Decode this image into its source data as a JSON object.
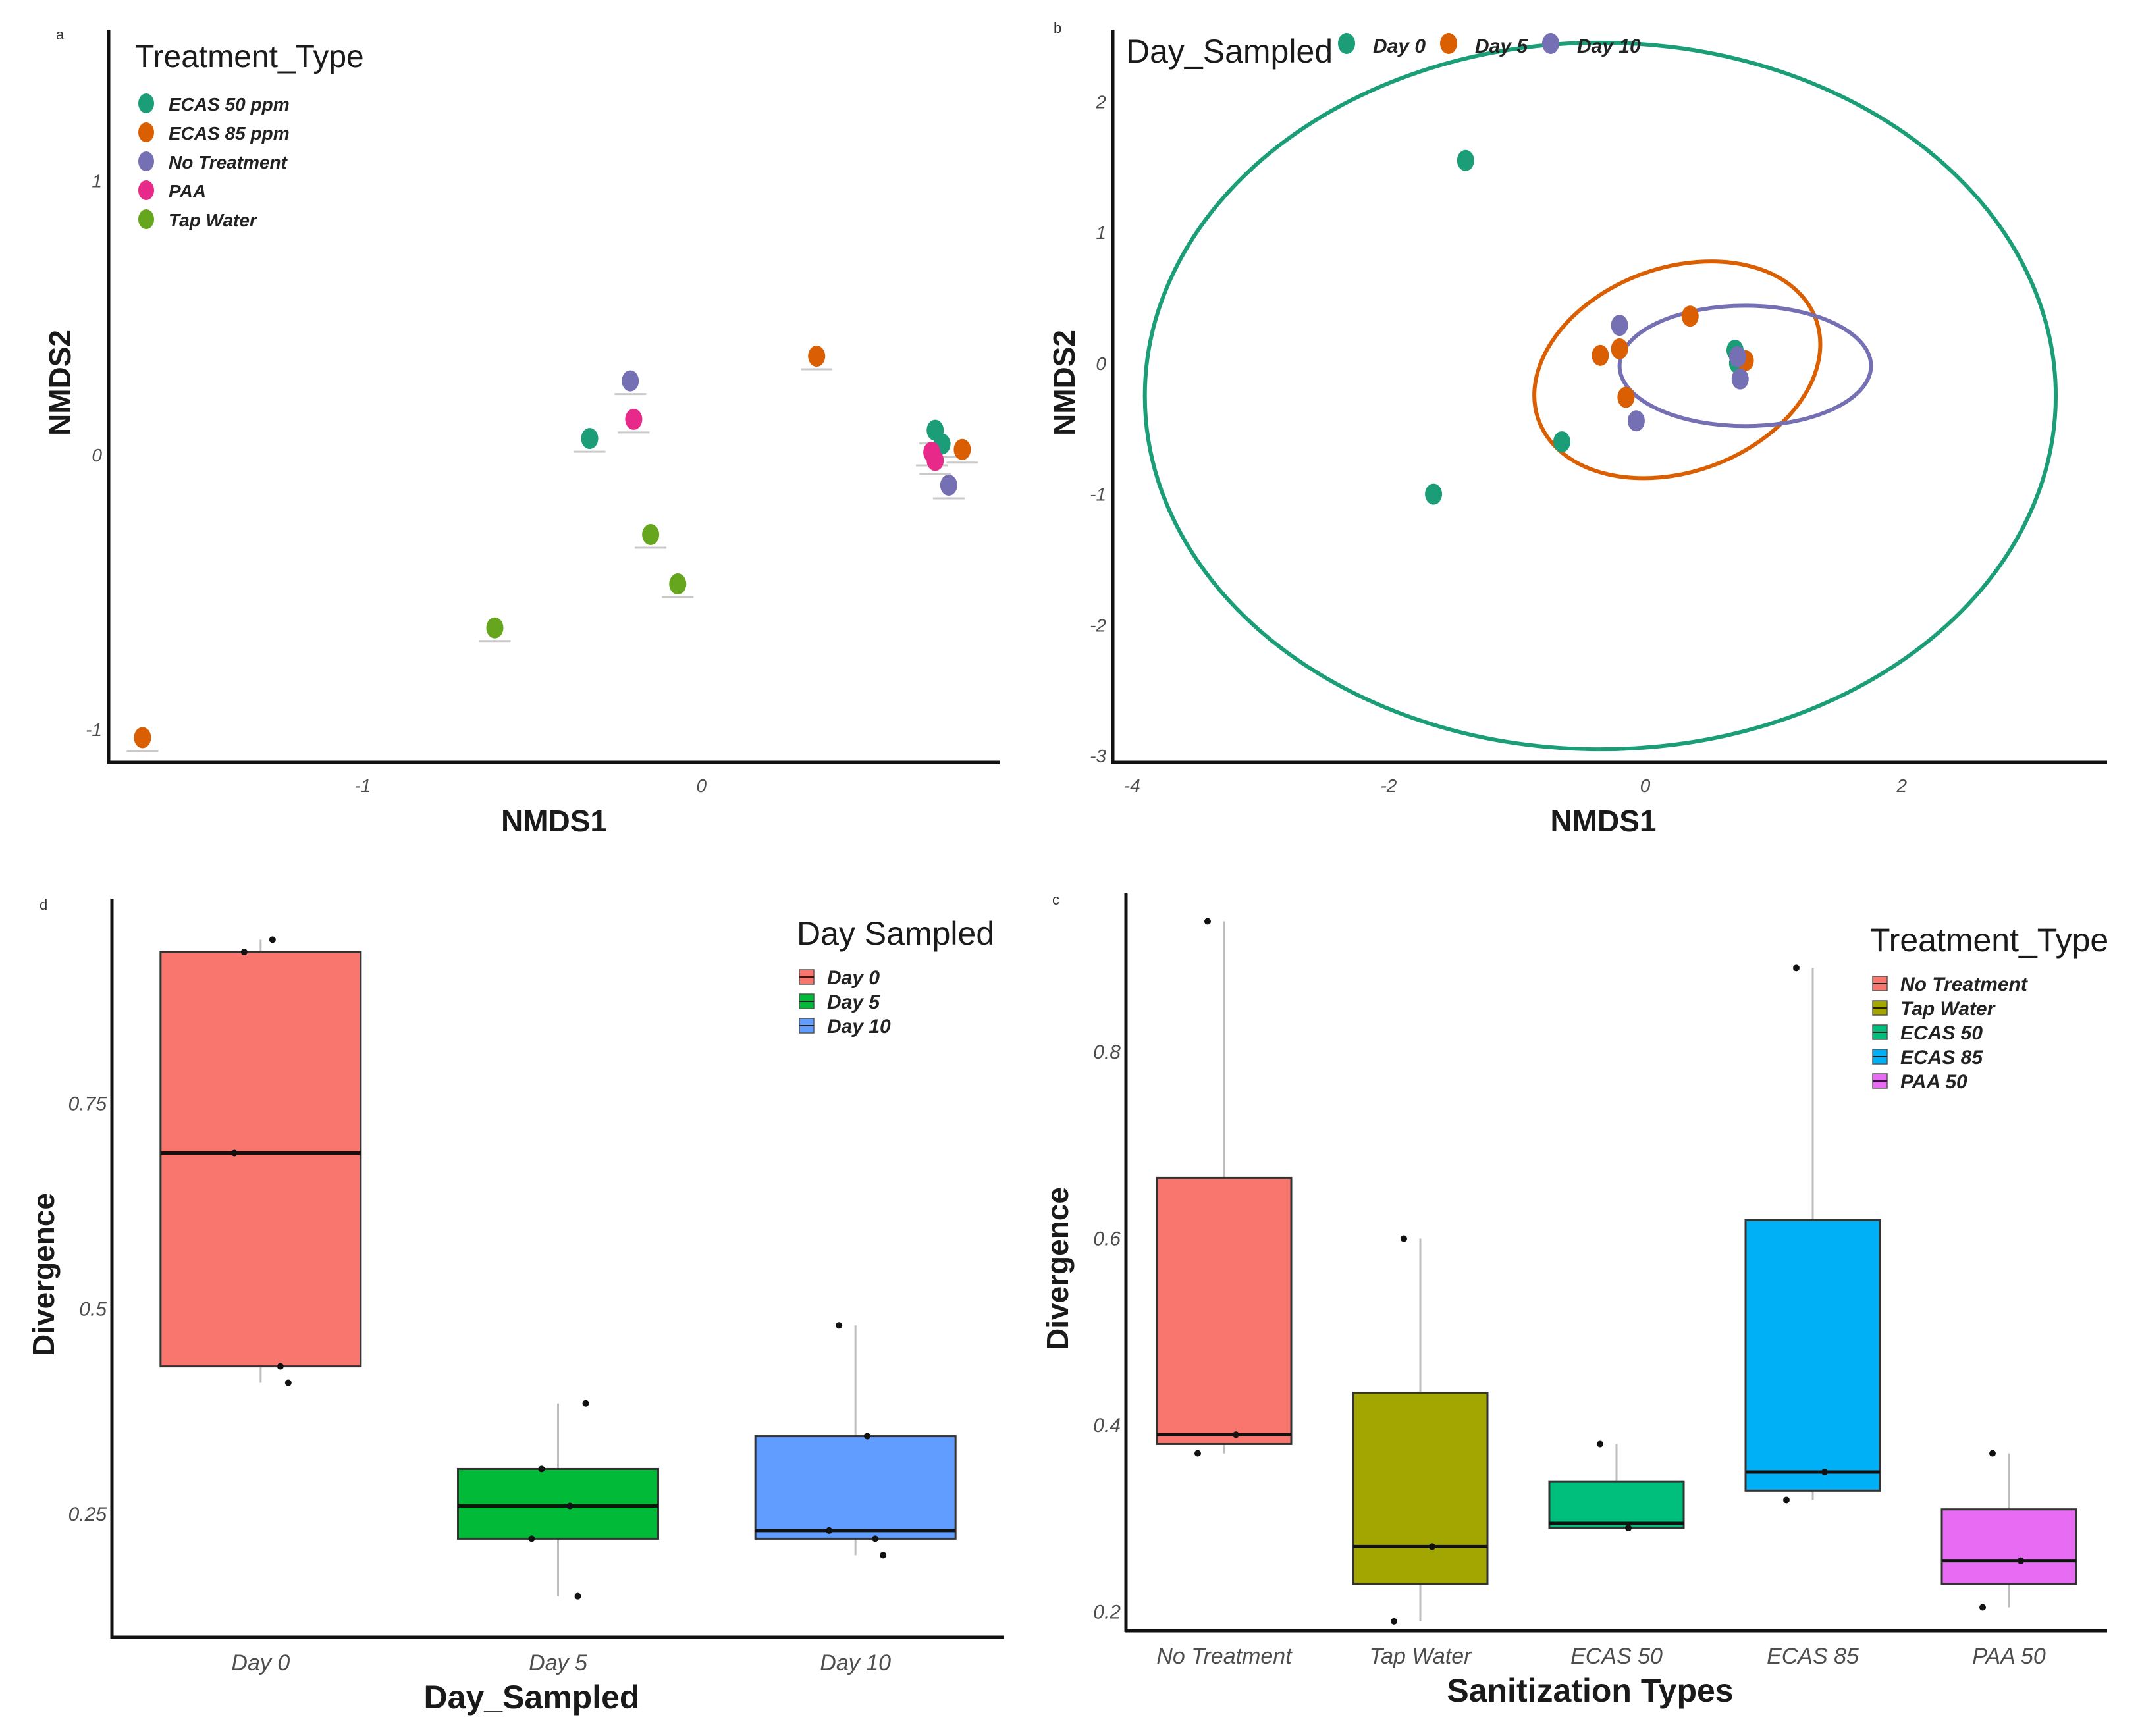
{
  "chart_data": [
    {
      "panel": "a",
      "type": "scatter",
      "xlabel": "NMDS1",
      "ylabel": "NMDS2",
      "xlim": [
        -1.75,
        0.88
      ],
      "ylim": [
        -1.12,
        1.55
      ],
      "xticks": [
        -1,
        0
      ],
      "yticks": [
        -1,
        0,
        1
      ],
      "legend": {
        "title": "Treatment_Type",
        "position": "top-left",
        "entries": [
          {
            "label": "ECAS 50 ppm",
            "color": "#1b9e77"
          },
          {
            "label": "ECAS 85 ppm",
            "color": "#d95f02"
          },
          {
            "label": "No Treatment",
            "color": "#7570b3"
          },
          {
            "label": "PAA",
            "color": "#e7298a"
          },
          {
            "label": "Tap Water",
            "color": "#66a61e"
          }
        ]
      },
      "series": [
        {
          "name": "ECAS 50 ppm",
          "color": "#1b9e77",
          "points": [
            [
              -0.33,
              0.06
            ],
            [
              0.69,
              0.09
            ],
            [
              0.71,
              0.04
            ]
          ]
        },
        {
          "name": "ECAS 85 ppm",
          "color": "#d95f02",
          "points": [
            [
              -1.65,
              -1.03
            ],
            [
              0.34,
              0.36
            ],
            [
              0.77,
              0.02
            ]
          ]
        },
        {
          "name": "No Treatment",
          "color": "#7570b3",
          "points": [
            [
              -0.21,
              0.27
            ],
            [
              0.73,
              -0.11
            ]
          ]
        },
        {
          "name": "PAA",
          "color": "#e7298a",
          "points": [
            [
              -0.2,
              0.13
            ],
            [
              0.68,
              0.01
            ],
            [
              0.69,
              -0.02
            ]
          ]
        },
        {
          "name": "Tap Water",
          "color": "#66a61e",
          "points": [
            [
              -0.15,
              -0.29
            ],
            [
              -0.07,
              -0.47
            ],
            [
              -0.61,
              -0.63
            ]
          ]
        }
      ]
    },
    {
      "panel": "b",
      "type": "scatter",
      "xlabel": "NMDS1",
      "ylabel": "NMDS2",
      "xlim": [
        -4.15,
        3.6
      ],
      "ylim": [
        -3.05,
        2.55
      ],
      "xticks": [
        -4,
        -2,
        0,
        2
      ],
      "yticks": [
        -3,
        -2,
        -1,
        0,
        1,
        2
      ],
      "legend": {
        "title": "Day_Sampled",
        "position": "top",
        "entries": [
          {
            "label": "Day 0",
            "color": "#1b9e77"
          },
          {
            "label": "Day 5",
            "color": "#d95f02"
          },
          {
            "label": "Day 10",
            "color": "#7570b3"
          }
        ]
      },
      "series": [
        {
          "name": "Day 0",
          "color": "#1b9e77",
          "points": [
            [
              -1.4,
              1.55
            ],
            [
              -1.65,
              -1.0
            ],
            [
              -0.65,
              -0.6
            ],
            [
              0.7,
              0.1
            ],
            [
              0.72,
              0.0
            ]
          ]
        },
        {
          "name": "Day 5",
          "color": "#d95f02",
          "points": [
            [
              -0.35,
              0.06
            ],
            [
              -0.2,
              0.11
            ],
            [
              0.35,
              0.36
            ],
            [
              -0.15,
              -0.26
            ],
            [
              0.78,
              0.02
            ]
          ]
        },
        {
          "name": "Day 10",
          "color": "#7570b3",
          "points": [
            [
              -0.2,
              0.29
            ],
            [
              -0.07,
              -0.44
            ],
            [
              0.72,
              0.05
            ],
            [
              0.74,
              -0.12
            ]
          ]
        }
      ],
      "ellipses": [
        {
          "name": "Day 0",
          "color": "#1b9e77",
          "center": [
            -0.35,
            -0.25
          ],
          "radii": [
            3.55,
            2.7
          ],
          "angle": 0
        },
        {
          "name": "Day 5",
          "color": "#d95f02",
          "center": [
            0.25,
            -0.05
          ],
          "radii": [
            1.15,
            0.78
          ],
          "angle": 20
        },
        {
          "name": "Day 10",
          "color": "#7570b3",
          "center": [
            0.78,
            -0.02
          ],
          "radii": [
            0.98,
            0.46
          ],
          "angle": 0
        }
      ]
    },
    {
      "panel": "d",
      "type": "box",
      "xlabel": "Day_Sampled",
      "ylabel": "Divergence",
      "ylim": [
        0.1,
        1.0
      ],
      "yticks": [
        0.25,
        0.5,
        0.75
      ],
      "categories": [
        "Day 0",
        "Day 5",
        "Day 10"
      ],
      "legend": {
        "title": "Day Sampled",
        "position": "top-right",
        "entries": [
          {
            "label": "Day 0",
            "color": "#f8766d"
          },
          {
            "label": "Day 5",
            "color": "#00ba38"
          },
          {
            "label": "Day 10",
            "color": "#619cff"
          }
        ]
      },
      "boxes": [
        {
          "category": "Day 0",
          "color": "#f8766d",
          "min": 0.41,
          "q1": 0.43,
          "median": 0.69,
          "q3": 0.935,
          "max": 0.95,
          "points": [
            0.935,
            0.95,
            0.69,
            0.43,
            0.41
          ]
        },
        {
          "category": "Day 5",
          "color": "#00ba38",
          "min": 0.15,
          "q1": 0.22,
          "median": 0.26,
          "q3": 0.305,
          "max": 0.385,
          "points": [
            0.305,
            0.26,
            0.22,
            0.15,
            0.385
          ]
        },
        {
          "category": "Day 10",
          "color": "#619cff",
          "min": 0.2,
          "q1": 0.22,
          "median": 0.23,
          "q3": 0.345,
          "max": 0.48,
          "points": [
            0.48,
            0.345,
            0.23,
            0.22,
            0.2
          ]
        }
      ]
    },
    {
      "panel": "c",
      "type": "box",
      "xlabel": "Sanitization Types",
      "ylabel": "Divergence",
      "ylim": [
        0.18,
        0.97
      ],
      "yticks": [
        0.2,
        0.4,
        0.6,
        0.8
      ],
      "categories": [
        "No Treatment",
        "Tap Water",
        "ECAS 50",
        "ECAS 85",
        "PAA 50"
      ],
      "legend": {
        "title": "Treatment_Type",
        "position": "top-right",
        "entries": [
          {
            "label": "No Treatment",
            "color": "#f8766d"
          },
          {
            "label": "Tap Water",
            "color": "#a3a500"
          },
          {
            "label": "ECAS 50",
            "color": "#00bf7d"
          },
          {
            "label": "ECAS 85",
            "color": "#00b0f6"
          },
          {
            "label": "PAA 50",
            "color": "#e76bf3"
          }
        ]
      },
      "boxes": [
        {
          "category": "No Treatment",
          "color": "#f8766d",
          "min": 0.37,
          "q1": 0.38,
          "median": 0.39,
          "q3": 0.665,
          "max": 0.94,
          "points": [
            0.94,
            0.39,
            0.37
          ]
        },
        {
          "category": "Tap Water",
          "color": "#a3a500",
          "min": 0.19,
          "q1": 0.23,
          "median": 0.27,
          "q3": 0.435,
          "max": 0.6,
          "points": [
            0.6,
            0.27,
            0.19
          ]
        },
        {
          "category": "ECAS 50",
          "color": "#00bf7d",
          "min": 0.29,
          "q1": 0.29,
          "median": 0.295,
          "q3": 0.34,
          "max": 0.38,
          "points": [
            0.38,
            0.29
          ]
        },
        {
          "category": "ECAS 85",
          "color": "#00b0f6",
          "min": 0.32,
          "q1": 0.33,
          "median": 0.35,
          "q3": 0.62,
          "max": 0.89,
          "points": [
            0.89,
            0.35,
            0.32
          ]
        },
        {
          "category": "PAA 50",
          "color": "#e76bf3",
          "min": 0.205,
          "q1": 0.23,
          "median": 0.255,
          "q3": 0.31,
          "max": 0.37,
          "points": [
            0.37,
            0.255,
            0.205
          ]
        }
      ]
    }
  ]
}
